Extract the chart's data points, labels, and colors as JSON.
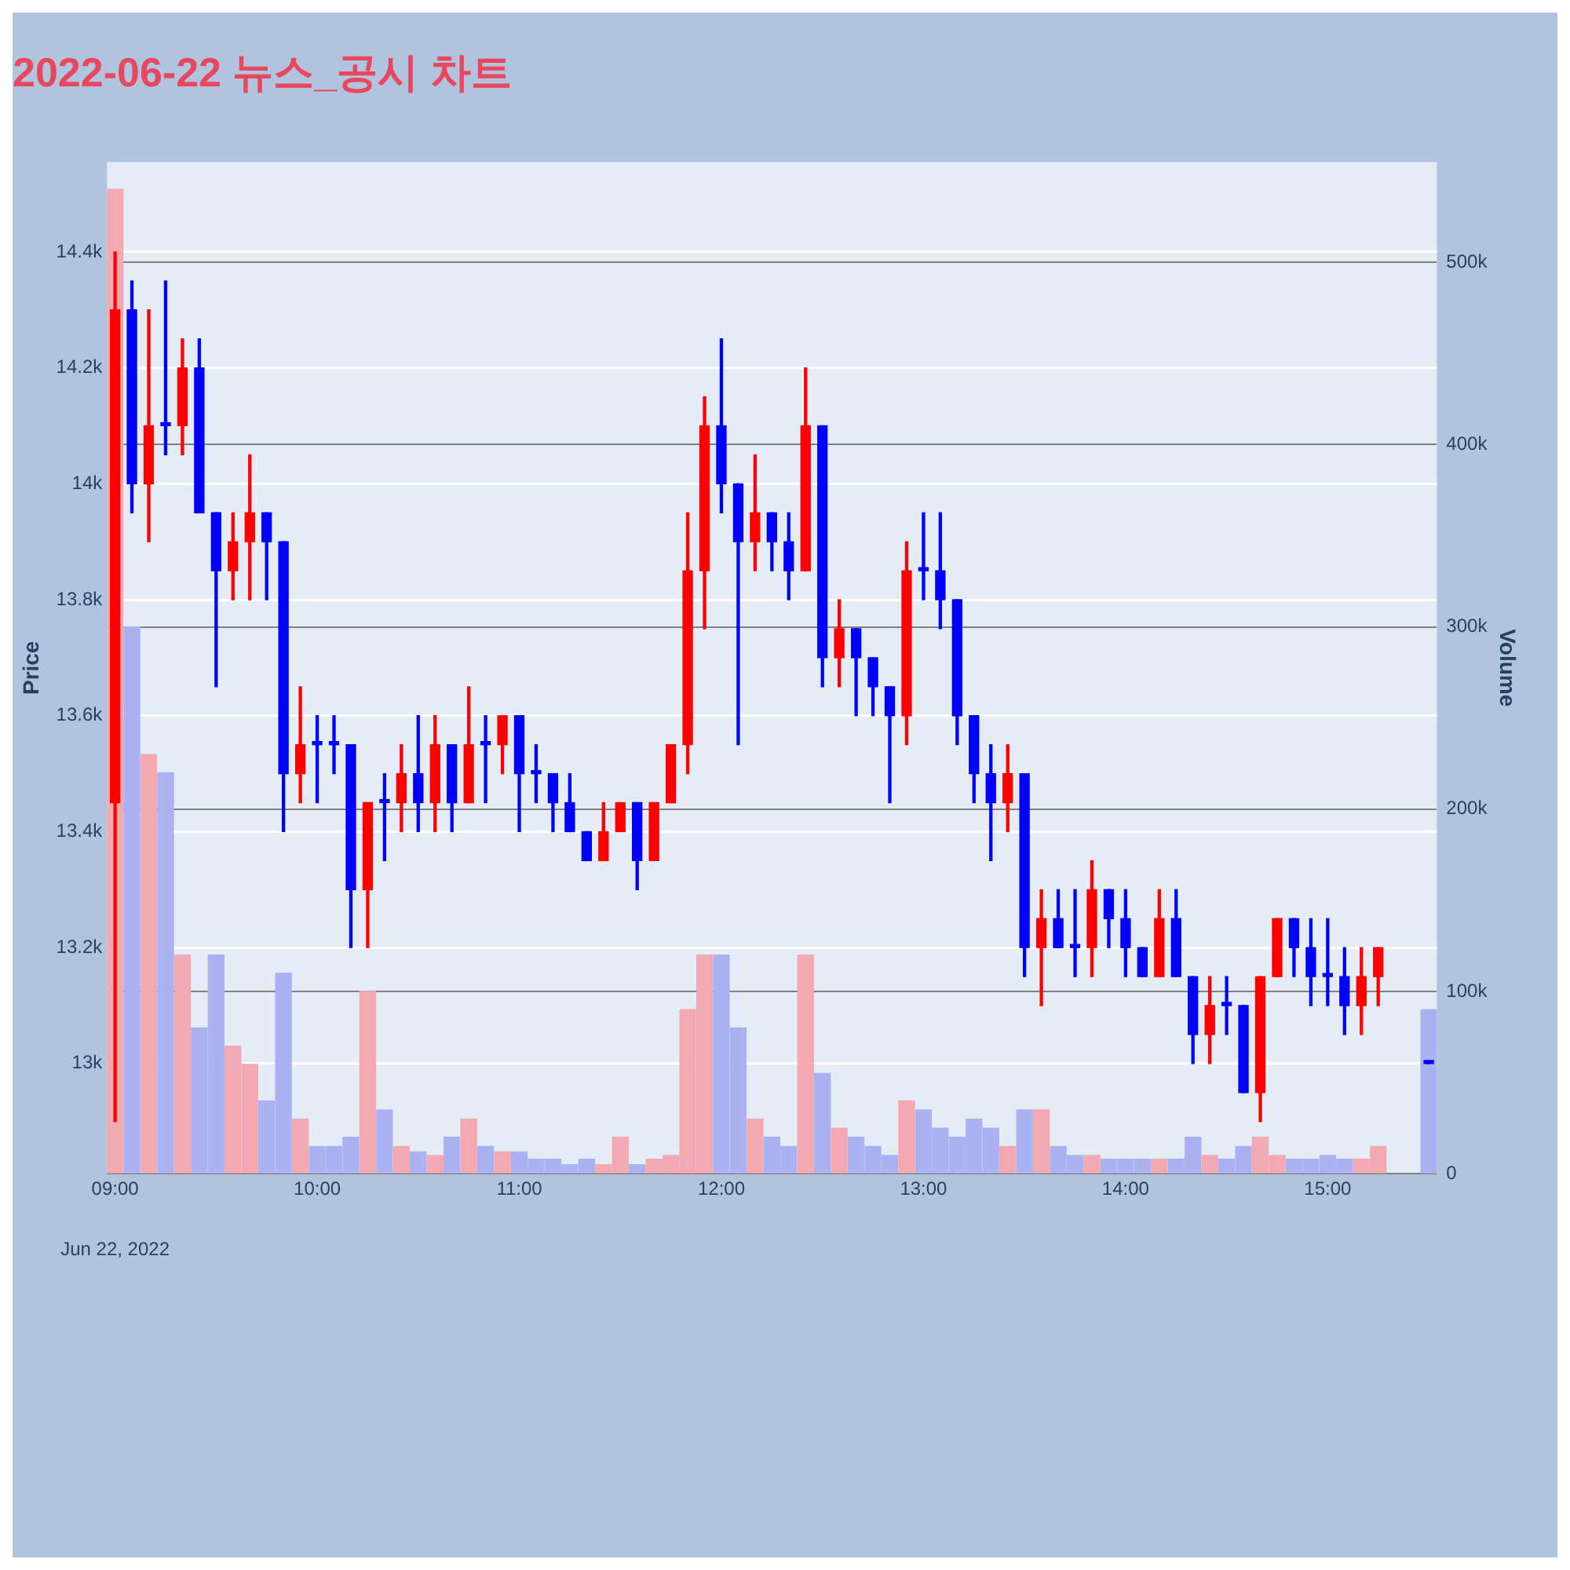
{
  "chart_data": {
    "type": "candlestick",
    "title": "2022-06-22 뉴스_공시 차트",
    "ylabel": "Price",
    "y2label": "Volume",
    "annotations": [
      "Jun 22, 2022"
    ],
    "xlim": [
      8.96,
      15.54
    ],
    "xticks": [
      {
        "value": 9,
        "label": "09:00"
      },
      {
        "value": 10,
        "label": "10:00"
      },
      {
        "value": 11,
        "label": "11:00"
      },
      {
        "value": 12,
        "label": "12:00"
      },
      {
        "value": 13,
        "label": "13:00"
      },
      {
        "value": 14,
        "label": "14:00"
      },
      {
        "value": 15,
        "label": "15:00"
      }
    ],
    "ylim": [
      12810,
      14555
    ],
    "yticks": [
      {
        "value": 13000,
        "label": "13k"
      },
      {
        "value": 13200,
        "label": "13.2k"
      },
      {
        "value": 13400,
        "label": "13.4k"
      },
      {
        "value": 13600,
        "label": "13.6k"
      },
      {
        "value": 13800,
        "label": "13.8k"
      },
      {
        "value": 14000,
        "label": "14k"
      },
      {
        "value": 14200,
        "label": "14.2k"
      },
      {
        "value": 14400,
        "label": "14.4k"
      }
    ],
    "y2lim": [
      0,
      555000
    ],
    "y2ticks": [
      0,
      {
        "value": 100000,
        "label": "100k"
      },
      {
        "value": 200000,
        "label": "200k"
      },
      {
        "value": 300000,
        "label": "300k"
      },
      {
        "value": 400000,
        "label": "400k"
      },
      {
        "value": 500000,
        "label": "500k"
      }
    ],
    "grid": "y",
    "legend": false,
    "series": [
      {
        "color": "#ff0000",
        "x": [
          9,
          9.1667,
          9.3333,
          9.5833,
          9.6667,
          9.9167,
          10.25,
          10.4167,
          10.5833,
          10.75,
          10.9167,
          11.4167,
          11.5,
          11.6667,
          11.75,
          11.8333,
          11.9167,
          12.1667,
          12.4167,
          12.5833,
          12.9167,
          13.4167,
          13.5833,
          13.8333,
          14.1667,
          14.4167,
          14.6667,
          14.75,
          15.1667,
          15.25
        ],
        "ohlc": [
          [
            13450,
            14400,
            12900,
            14300
          ],
          [
            14000,
            14300,
            13900,
            14100
          ],
          [
            14100,
            14250,
            14050,
            14200
          ],
          [
            13850,
            13950,
            13800,
            13900
          ],
          [
            13900,
            14050,
            13800,
            13950
          ],
          [
            13500,
            13650,
            13450,
            13550
          ],
          [
            13300,
            13450,
            13200,
            13450
          ],
          [
            13450,
            13550,
            13400,
            13500
          ],
          [
            13450,
            13600,
            13400,
            13550
          ],
          [
            13450,
            13650,
            13450,
            13550
          ],
          [
            13550,
            13600,
            13500,
            13600
          ],
          [
            13350,
            13450,
            13350,
            13400
          ],
          [
            13400,
            13450,
            13400,
            13450
          ],
          [
            13350,
            13450,
            13350,
            13450
          ],
          [
            13450,
            13550,
            13450,
            13550
          ],
          [
            13550,
            13950,
            13500,
            13850
          ],
          [
            13850,
            14150,
            13750,
            14100
          ],
          [
            13900,
            14050,
            13850,
            13950
          ],
          [
            13850,
            14200,
            13850,
            14100
          ],
          [
            13700,
            13800,
            13650,
            13750
          ],
          [
            13600,
            13900,
            13550,
            13850
          ],
          [
            13450,
            13550,
            13400,
            13500
          ],
          [
            13200,
            13300,
            13100,
            13250
          ],
          [
            13200,
            13350,
            13150,
            13300
          ],
          [
            13150,
            13300,
            13150,
            13250
          ],
          [
            13050,
            13150,
            13000,
            13100
          ],
          [
            12950,
            13150,
            12900,
            13150
          ],
          [
            13150,
            13250,
            13150,
            13250
          ],
          [
            13100,
            13200,
            13050,
            13150
          ],
          [
            13150,
            13200,
            13100,
            13200
          ]
        ]
      },
      {
        "color": "#0000ff",
        "x": [
          9.0833,
          9.25,
          9.4167,
          9.5,
          9.75,
          9.8333,
          10,
          10.0833,
          10.1667,
          10.3333,
          10.5,
          10.6667,
          10.8333,
          11,
          11.0833,
          11.1667,
          11.25,
          11.3333,
          11.5833,
          12,
          12.0833,
          12.25,
          12.3333,
          12.5,
          12.6667,
          12.75,
          12.8333,
          13,
          13.0833,
          13.1667,
          13.25,
          13.3333,
          13.5,
          13.6667,
          13.75,
          13.9167,
          14,
          14.0833,
          14.25,
          14.3333,
          14.5,
          14.5833,
          14.8333,
          14.9167,
          15,
          15.0833,
          15.5
        ],
        "ohlc": [
          [
            14300,
            14350,
            13950,
            14000
          ],
          [
            14100,
            14350,
            14050,
            14100
          ],
          [
            14200,
            14250,
            13950,
            13950
          ],
          [
            13950,
            13950,
            13650,
            13850
          ],
          [
            13950,
            13950,
            13800,
            13900
          ],
          [
            13900,
            13900,
            13400,
            13500
          ],
          [
            13550,
            13600,
            13450,
            13550
          ],
          [
            13550,
            13600,
            13500,
            13550
          ],
          [
            13550,
            13550,
            13200,
            13300
          ],
          [
            13450,
            13500,
            13350,
            13450
          ],
          [
            13500,
            13600,
            13400,
            13450
          ],
          [
            13550,
            13550,
            13400,
            13450
          ],
          [
            13550,
            13600,
            13450,
            13550
          ],
          [
            13600,
            13600,
            13400,
            13500
          ],
          [
            13500,
            13550,
            13450,
            13500
          ],
          [
            13500,
            13500,
            13400,
            13450
          ],
          [
            13450,
            13500,
            13400,
            13400
          ],
          [
            13400,
            13400,
            13350,
            13350
          ],
          [
            13450,
            13450,
            13300,
            13350
          ],
          [
            14100,
            14250,
            13950,
            14000
          ],
          [
            14000,
            14000,
            13550,
            13900
          ],
          [
            13950,
            13950,
            13850,
            13900
          ],
          [
            13900,
            13950,
            13800,
            13850
          ],
          [
            14100,
            14100,
            13650,
            13700
          ],
          [
            13750,
            13750,
            13600,
            13700
          ],
          [
            13700,
            13700,
            13600,
            13650
          ],
          [
            13650,
            13650,
            13450,
            13600
          ],
          [
            13850,
            13950,
            13800,
            13850
          ],
          [
            13850,
            13950,
            13750,
            13800
          ],
          [
            13800,
            13800,
            13550,
            13600
          ],
          [
            13600,
            13600,
            13450,
            13500
          ],
          [
            13500,
            13550,
            13350,
            13450
          ],
          [
            13500,
            13500,
            13150,
            13200
          ],
          [
            13250,
            13300,
            13200,
            13200
          ],
          [
            13200,
            13300,
            13150,
            13200
          ],
          [
            13300,
            13300,
            13200,
            13250
          ],
          [
            13250,
            13300,
            13150,
            13200
          ],
          [
            13200,
            13200,
            13150,
            13150
          ],
          [
            13250,
            13300,
            13150,
            13150
          ],
          [
            13150,
            13150,
            13000,
            13050
          ],
          [
            13100,
            13150,
            13050,
            13100
          ],
          [
            13100,
            13100,
            12950,
            12950
          ],
          [
            13250,
            13250,
            13150,
            13200
          ],
          [
            13200,
            13250,
            13100,
            13150
          ],
          [
            13150,
            13250,
            13100,
            13150
          ],
          [
            13150,
            13200,
            13050,
            13100
          ],
          [
            13000,
            13000,
            13000,
            13000
          ]
        ]
      },
      {
        "type": "bar",
        "axis": "y2",
        "color": "#f2a9b2",
        "x": [
          9,
          9.1667,
          9.3333,
          9.5833,
          9.6667,
          9.9167,
          10.25,
          10.4167,
          10.5833,
          10.75,
          10.9167,
          11.4167,
          11.5,
          11.6667,
          11.75,
          11.8333,
          11.9167,
          12.1667,
          12.4167,
          12.5833,
          12.9167,
          13.4167,
          13.5833,
          13.8333,
          14.1667,
          14.4167,
          14.6667,
          14.75,
          15.1667,
          15.25
        ],
        "values": [
          540000,
          230000,
          120000,
          70000,
          60000,
          30000,
          100000,
          15000,
          10000,
          30000,
          12000,
          5000,
          20000,
          8000,
          10000,
          90000,
          120000,
          30000,
          120000,
          25000,
          40000,
          15000,
          35000,
          10000,
          8000,
          10000,
          20000,
          10000,
          8000,
          15000
        ]
      },
      {
        "type": "bar",
        "axis": "y2",
        "color": "#aab2f2",
        "x": [
          9.0833,
          9.25,
          9.4167,
          9.5,
          9.75,
          9.8333,
          10,
          10.0833,
          10.1667,
          10.3333,
          10.5,
          10.6667,
          10.8333,
          11,
          11.0833,
          11.1667,
          11.25,
          11.3333,
          11.5833,
          12,
          12.0833,
          12.25,
          12.3333,
          12.5,
          12.6667,
          12.75,
          12.8333,
          13,
          13.0833,
          13.1667,
          13.25,
          13.3333,
          13.5,
          13.6667,
          13.75,
          13.9167,
          14,
          14.0833,
          14.25,
          14.3333,
          14.5,
          14.5833,
          14.8333,
          14.9167,
          15,
          15.0833,
          15.5
        ],
        "values": [
          300000,
          220000,
          80000,
          120000,
          40000,
          110000,
          15000,
          15000,
          20000,
          35000,
          12000,
          20000,
          15000,
          12000,
          8000,
          8000,
          5000,
          8000,
          5000,
          120000,
          80000,
          20000,
          15000,
          55000,
          20000,
          15000,
          10000,
          35000,
          25000,
          20000,
          30000,
          25000,
          35000,
          15000,
          10000,
          8000,
          8000,
          8000,
          8000,
          20000,
          8000,
          15000,
          8000,
          8000,
          10000,
          8000,
          90000
        ]
      }
    ]
  }
}
